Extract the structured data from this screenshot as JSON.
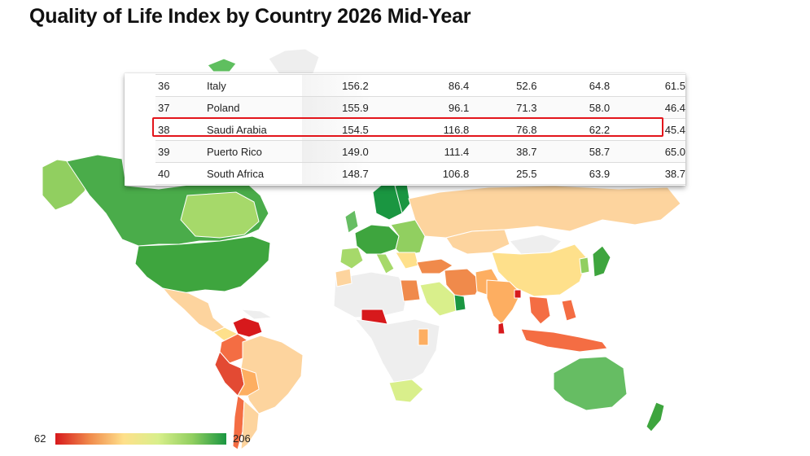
{
  "title": "Quality of Life Index by Country 2026 Mid-Year",
  "legend": {
    "min": "62",
    "max": "206",
    "colors": [
      "#d7191c",
      "#f08a4b",
      "#fee08b",
      "#d9ef8b",
      "#91cf60",
      "#1a9641"
    ]
  },
  "chart_data": {
    "type": "table",
    "title": "Quality of Life Index by Country 2026 Mid-Year",
    "rows": [
      {
        "rank": "36",
        "country": "Italy",
        "v1": "156.2",
        "v2": "86.4",
        "v3": "52.6",
        "v4": "64.8",
        "v5": "61.5"
      },
      {
        "rank": "37",
        "country": "Poland",
        "v1": "155.9",
        "v2": "96.1",
        "v3": "71.3",
        "v4": "58.0",
        "v5": "46.4"
      },
      {
        "rank": "38",
        "country": "Saudi Arabia",
        "v1": "154.5",
        "v2": "116.8",
        "v3": "76.8",
        "v4": "62.2",
        "v5": "45.4",
        "highlighted": true
      },
      {
        "rank": "39",
        "country": "Puerto Rico",
        "v1": "149.0",
        "v2": "111.4",
        "v3": "38.7",
        "v4": "58.7",
        "v5": "65.0"
      },
      {
        "rank": "40",
        "country": "South Africa",
        "v1": "148.7",
        "v2": "106.8",
        "v3": "25.5",
        "v4": "63.9",
        "v5": "38.7"
      }
    ],
    "color_scale": {
      "min": 62,
      "max": 206,
      "low_color": "#d7191c",
      "high_color": "#1a9641"
    }
  }
}
